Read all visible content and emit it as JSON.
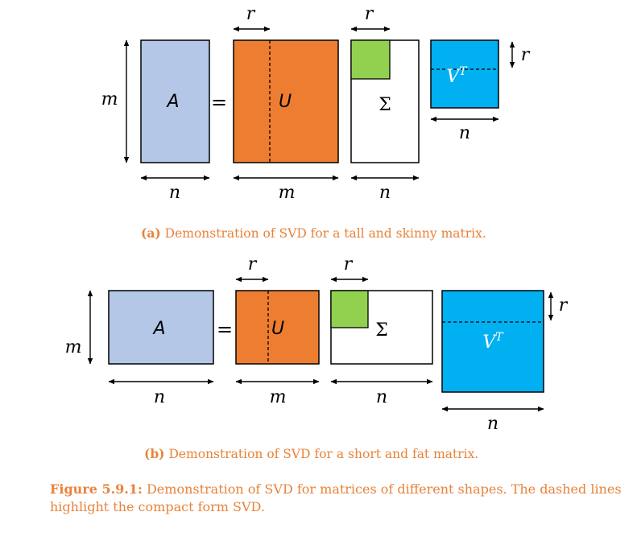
{
  "colors": {
    "matrix_a": "#b4c7e7",
    "matrix_u": "#ed7d31",
    "sigma_block": "#92d050",
    "matrix_vt": "#00b0f0",
    "caption": "#e8833a"
  },
  "labels": {
    "m": "m",
    "n": "n",
    "r": "r",
    "A": "A",
    "U": "U",
    "equals": "=",
    "sigma": "Σ",
    "V": "V",
    "T": "T"
  },
  "subfig_a": {
    "tag": "(a)",
    "text": " Demonstration of SVD for a tall and skinny matrix."
  },
  "subfig_b": {
    "tag": "(b)",
    "text": " Demonstration of SVD for a short and fat matrix."
  },
  "figure": {
    "label": "Figure 5.9.1:",
    "text": " Demonstration of SVD for matrices of different shapes. The dashed lines highlight the compact form SVD."
  }
}
